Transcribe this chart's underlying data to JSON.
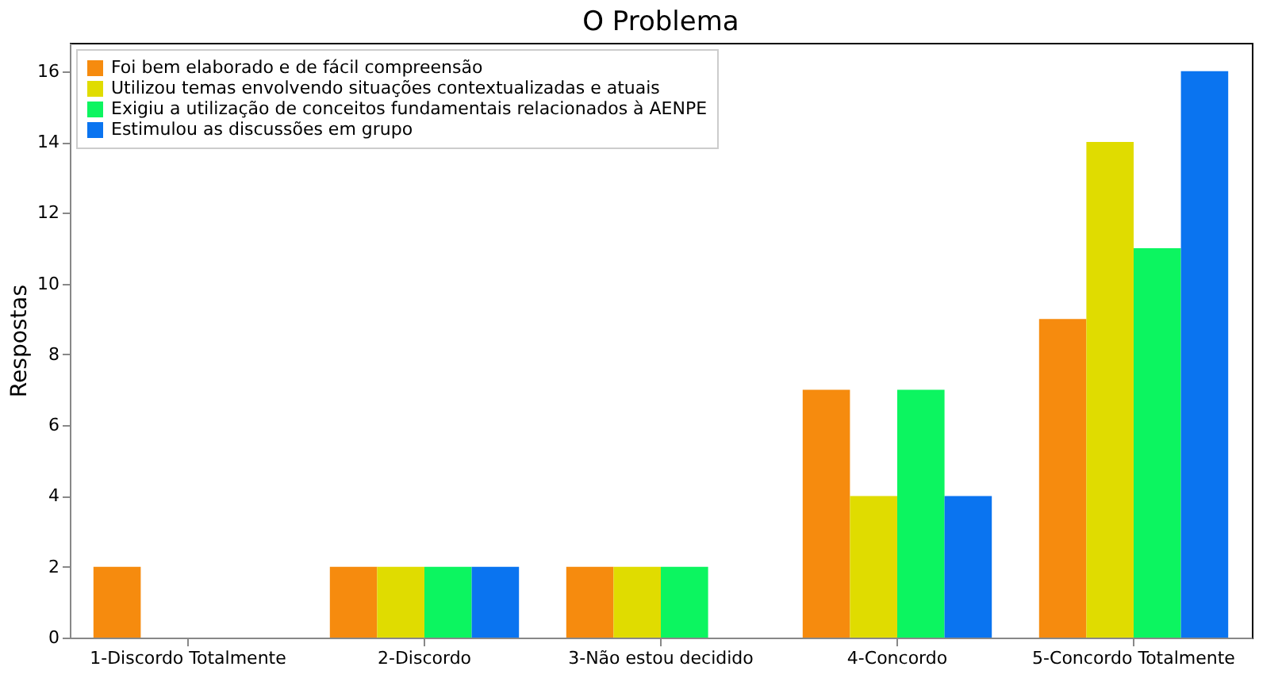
{
  "chart_data": {
    "type": "bar",
    "title": "O Problema",
    "ylabel": "Respostas",
    "categories": [
      "1-Discordo Totalmente",
      "2-Discordo",
      "3-Não estou decidido",
      "4-Concordo",
      "5-Concordo Totalmente"
    ],
    "series": [
      {
        "name": "Foi bem elaborado e de fácil compreensão",
        "color": "#f68b0e",
        "values": [
          2,
          2,
          2,
          7,
          9
        ]
      },
      {
        "name": "Utilizou temas envolvendo situações contextualizadas e atuais",
        "color": "#e0dc00",
        "values": [
          0,
          2,
          2,
          4,
          14
        ]
      },
      {
        "name": "Exigiu a utilização de conceitos fundamentais relacionados à AENPE",
        "color": "#0cf560",
        "values": [
          0,
          2,
          2,
          7,
          11
        ]
      },
      {
        "name": "Estimulou as discussões em grupo",
        "color": "#0a74f0",
        "values": [
          0,
          2,
          0,
          4,
          16
        ]
      }
    ],
    "ylim": [
      0,
      16.8
    ],
    "yticks": [
      0,
      2,
      4,
      6,
      8,
      10,
      12,
      14,
      16
    ],
    "grid": false,
    "legend": "top left"
  }
}
